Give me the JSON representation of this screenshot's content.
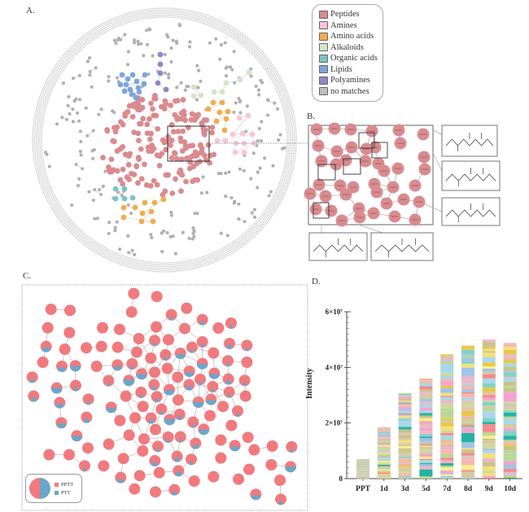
{
  "panels": {
    "a": {
      "label": "A."
    },
    "b": {
      "label": "B."
    },
    "c": {
      "label": "C."
    },
    "d": {
      "label": "D."
    }
  },
  "legend_a": {
    "items": [
      {
        "label": "Peptides",
        "color": "#d98b8f"
      },
      {
        "label": "Amines",
        "color": "#f5c6d8"
      },
      {
        "label": "Amino acids",
        "color": "#f0ac4e"
      },
      {
        "label": "Alkaloids",
        "color": "#d6e3c8"
      },
      {
        "label": "Organic acids",
        "color": "#7cc4c4"
      },
      {
        "label": "Lipids",
        "color": "#7ea6d8"
      },
      {
        "label": "Polyamines",
        "color": "#8f86c8"
      },
      {
        "label": "no matches",
        "color": "#bdbdbd"
      }
    ]
  },
  "legend_c": {
    "items": [
      {
        "label": "PPTT",
        "color": "#f07a7e"
      },
      {
        "label": "PTT",
        "color": "#6aa6cc"
      }
    ]
  },
  "chart_data": {
    "type": "bar",
    "stacked": true,
    "title": "",
    "xlabel": "",
    "ylabel": "Intensity",
    "categories": [
      "PPT",
      "1d",
      "3d",
      "5d",
      "7d",
      "8d",
      "9d",
      "10d"
    ],
    "values": [
      7000000,
      18500000,
      30800000,
      36000000,
      44800000,
      47800000,
      50000000,
      48800000
    ],
    "ylim": [
      0,
      60000000
    ],
    "yticks": [
      {
        "value": 0,
        "label": "0"
      },
      {
        "value": 20000000,
        "label": "2×10⁷"
      },
      {
        "value": 40000000,
        "label": "4×10⁷"
      },
      {
        "value": 60000000,
        "label": "6×10⁷"
      }
    ],
    "grid": false,
    "legend": "none",
    "stack_palette": [
      "#e8c84a",
      "#24b3a0",
      "#f4a3d0",
      "#f48a8a",
      "#f6b8b0",
      "#c9c48a",
      "#a8d8e8",
      "#9ec4e8",
      "#f2e07a",
      "#b8d89a",
      "#e9b9c6",
      "#d6c9a4",
      "#7fd3c8",
      "#f7f08a",
      "#cfd8a0"
    ]
  },
  "structures": [
    {
      "id": "Thr-Leu",
      "label": "Thr-Leu"
    },
    {
      "id": "Met-Leu",
      "label": "Met-Leu"
    },
    {
      "id": "Leu-Val",
      "label": "Leu-Val"
    },
    {
      "id": "Leu-Phe",
      "label": "Leu-Phe"
    },
    {
      "id": "Phe-Val",
      "label": "Phe-Val"
    }
  ]
}
